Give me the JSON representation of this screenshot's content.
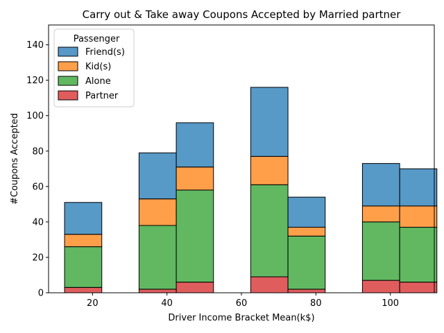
{
  "chart_data": {
    "type": "bar",
    "stacked": true,
    "title": "Carry out & Take away Coupons Accepted by Married partner",
    "xlabel": "Driver Income Bracket Mean(k$)",
    "ylabel": "#Coupons Accepted",
    "xlim": [
      8.2,
      111.8
    ],
    "ylim": [
      0,
      151.2
    ],
    "xticks": [
      20,
      40,
      60,
      80,
      100
    ],
    "yticks": [
      0,
      20,
      40,
      60,
      80,
      100,
      120,
      140
    ],
    "bins": [
      [
        12.5,
        22.5
      ],
      [
        22.5,
        32.5
      ],
      [
        32.5,
        42.5
      ],
      [
        42.5,
        52.5
      ],
      [
        52.5,
        62.5
      ],
      [
        62.5,
        72.5
      ],
      [
        72.5,
        82.5
      ],
      [
        82.5,
        92.5
      ],
      [
        92.5,
        102.5
      ],
      [
        102.5,
        112.5
      ]
    ],
    "series": [
      {
        "name": "Partner",
        "color": "#d62728",
        "values": [
          3,
          0,
          2,
          6,
          0,
          9,
          2,
          0,
          7,
          6
        ]
      },
      {
        "name": "Alone",
        "color": "#2ca02c",
        "values": [
          23,
          0,
          36,
          52,
          0,
          52,
          30,
          0,
          33,
          31
        ]
      },
      {
        "name": "Kid(s)",
        "color": "#ff7f0e",
        "values": [
          7,
          0,
          15,
          13,
          0,
          16,
          5,
          0,
          9,
          12
        ]
      },
      {
        "name": "Friend(s)",
        "color": "#1f77b4",
        "values": [
          18,
          0,
          26,
          25,
          0,
          39,
          17,
          0,
          24,
          21
        ]
      }
    ],
    "legend": {
      "title": "Passenger",
      "placement": "top-left",
      "order": [
        "Friend(s)",
        "Kid(s)",
        "Alone",
        "Partner"
      ]
    },
    "grid": false
  }
}
